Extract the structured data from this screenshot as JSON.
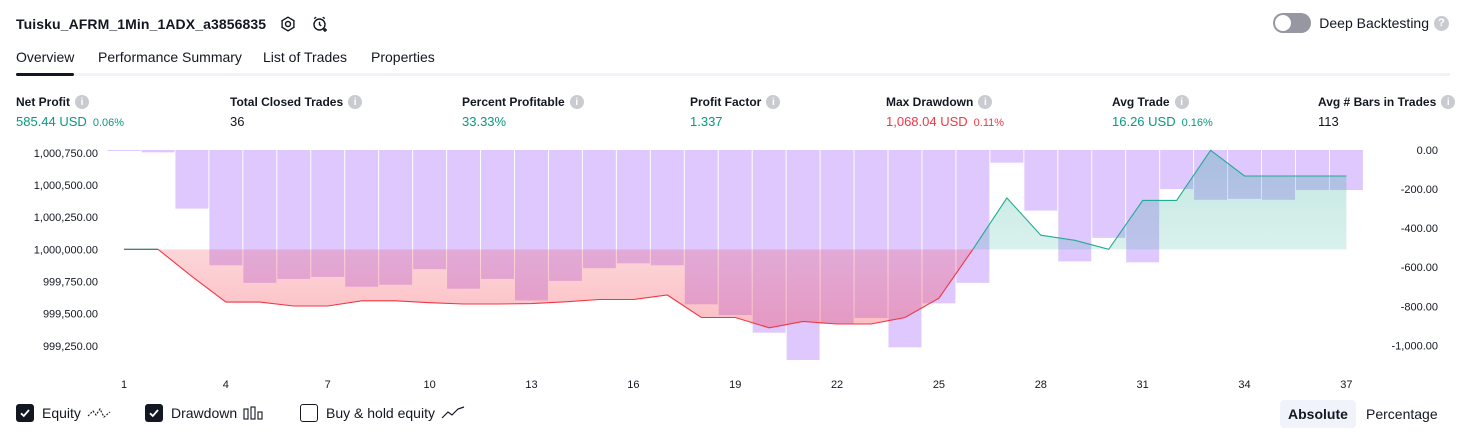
{
  "header": {
    "title": "Tuisku_AFRM_1Min_1ADX_a3856835",
    "deep_backtesting_label": "Deep Backtesting",
    "deep_backtesting_enabled": false
  },
  "tabs": [
    {
      "label": "Overview",
      "active": true
    },
    {
      "label": "Performance Summary",
      "active": false
    },
    {
      "label": "List of Trades",
      "active": false
    },
    {
      "label": "Properties",
      "active": false
    }
  ],
  "stats": {
    "net_profit": {
      "label": "Net Profit",
      "value": "585.44 USD",
      "pct": "0.06%"
    },
    "total_closed_trades": {
      "label": "Total Closed Trades",
      "value": "36"
    },
    "percent_profitable": {
      "label": "Percent Profitable",
      "value": "33.33%"
    },
    "profit_factor": {
      "label": "Profit Factor",
      "value": "1.337"
    },
    "max_drawdown": {
      "label": "Max Drawdown",
      "value": "1,068.04 USD",
      "pct": "0.11%"
    },
    "avg_trade": {
      "label": "Avg Trade",
      "value": "16.26 USD",
      "pct": "0.16%"
    },
    "avg_bars": {
      "label": "Avg # Bars in Trades",
      "value": "113"
    }
  },
  "chart_data": {
    "type": "line+bar",
    "left_axis_ticks": [
      "1,000,750.00",
      "1,000,500.00",
      "1,000,250.00",
      "1,000,000.00",
      "999,750.00",
      "999,500.00",
      "999,250.00"
    ],
    "right_axis_ticks": [
      "0.00",
      "-200.00",
      "-400.00",
      "-600.00",
      "-800.00",
      "-1,000.00"
    ],
    "x_ticks": [
      "1",
      "4",
      "7",
      "10",
      "13",
      "16",
      "19",
      "22",
      "25",
      "28",
      "31",
      "34",
      "37"
    ],
    "equity_baseline": 1000000,
    "left_ylim": [
      999140,
      1000772
    ],
    "right_ylim": [
      -1075,
      0
    ],
    "x_range": [
      1,
      37.4
    ],
    "equity": [
      [
        1,
        1000000
      ],
      [
        2,
        1000000
      ],
      [
        3,
        999790
      ],
      [
        4,
        999590
      ],
      [
        5,
        999590
      ],
      [
        6,
        999560
      ],
      [
        7,
        999560
      ],
      [
        8,
        999600
      ],
      [
        9,
        999600
      ],
      [
        10,
        999585
      ],
      [
        11,
        999575
      ],
      [
        12,
        999575
      ],
      [
        13,
        999578
      ],
      [
        14,
        999592
      ],
      [
        15,
        999610
      ],
      [
        16,
        999610
      ],
      [
        17,
        999645
      ],
      [
        18,
        999470
      ],
      [
        19,
        999470
      ],
      [
        20,
        999390
      ],
      [
        21,
        999440
      ],
      [
        22,
        999420
      ],
      [
        23,
        999420
      ],
      [
        24,
        999470
      ],
      [
        25,
        999620
      ],
      [
        26,
        1000000
      ],
      [
        27,
        1000400
      ],
      [
        28,
        1000110
      ],
      [
        29,
        1000070
      ],
      [
        30,
        1000000
      ],
      [
        31,
        1000380
      ],
      [
        32,
        1000380
      ],
      [
        33,
        1000770
      ],
      [
        34,
        1000570
      ],
      [
        35,
        1000570
      ],
      [
        36,
        1000570
      ],
      [
        37,
        1000570
      ]
    ],
    "drawdown": [
      -5,
      -12,
      -300,
      -590,
      -680,
      -660,
      -650,
      -700,
      -690,
      -610,
      -710,
      -660,
      -770,
      -670,
      -605,
      -580,
      -590,
      -790,
      -845,
      -935,
      -1075,
      -890,
      -860,
      -1010,
      -785,
      -680,
      -65,
      -310,
      -570,
      -450,
      -575,
      -200,
      -255,
      -250,
      -255,
      -205,
      -205
    ],
    "colors": {
      "equity_up": "#22ab94",
      "equity_down": "#f23645",
      "drawdown": "#c9a6fb",
      "axis_text": "#131722"
    }
  },
  "legend": {
    "equity": {
      "label": "Equity",
      "checked": true
    },
    "drawdown": {
      "label": "Drawdown",
      "checked": true
    },
    "buy_hold": {
      "label": "Buy & hold equity",
      "checked": false
    }
  },
  "mode": {
    "absolute": "Absolute",
    "percentage": "Percentage",
    "selected": "Absolute"
  }
}
